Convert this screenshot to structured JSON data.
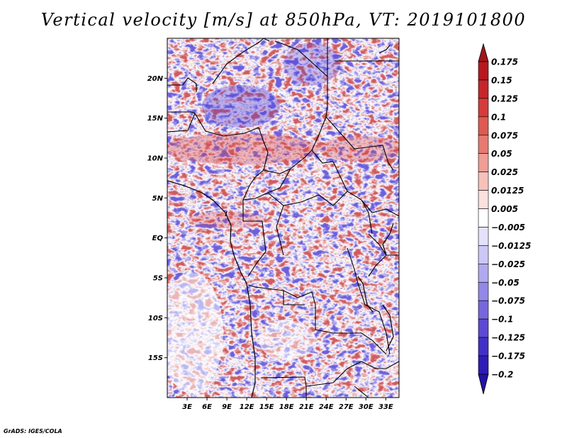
{
  "title": "Vertical velocity [m/s] at 850hPa, VT: 2019101800",
  "credit": "GrADS: IGES/COLA",
  "map": {
    "region": "Central Africa",
    "variable": "vertical velocity",
    "units": "m/s",
    "level": "850hPa",
    "valid_time": "2019101800",
    "lon_range_deg": [
      0,
      35
    ],
    "lat_range_deg": [
      -20,
      25
    ],
    "lon_ticks": [
      "3E",
      "6E",
      "9E",
      "12E",
      "15E",
      "18E",
      "21E",
      "24E",
      "27E",
      "30E",
      "33E"
    ],
    "lat_ticks": [
      "20N",
      "15N",
      "10N",
      "5N",
      "EQ",
      "5S",
      "10S",
      "15S"
    ]
  },
  "colorbar": {
    "orientation": "vertical",
    "extend": "both",
    "levels": [
      "0.175",
      "0.15",
      "0.125",
      "0.1",
      "0.075",
      "0.05",
      "0.025",
      "0.0125",
      "0.005",
      "−0.005",
      "−0.0125",
      "−0.025",
      "−0.05",
      "−0.075",
      "−0.1",
      "−0.125",
      "−0.175",
      "−0.2"
    ],
    "colors": {
      "top_arrow": "#a0161b",
      "bands_top_down": [
        "#b5191f",
        "#c5262b",
        "#d33c3a",
        "#de5a52",
        "#e67a70",
        "#ef9d95",
        "#f6c1bb",
        "#fbe1de",
        "#ffffff",
        "#e4e2fb",
        "#cbc7f6",
        "#b0a9ef",
        "#9288e6",
        "#7767dc",
        "#5c4ad2",
        "#4230c6",
        "#2f1cb6"
      ],
      "bottom_arrow": "#2412a6"
    }
  },
  "colors": {
    "ascent": "#c0262c",
    "descent": "#3d2bd0",
    "border": "#000000"
  }
}
